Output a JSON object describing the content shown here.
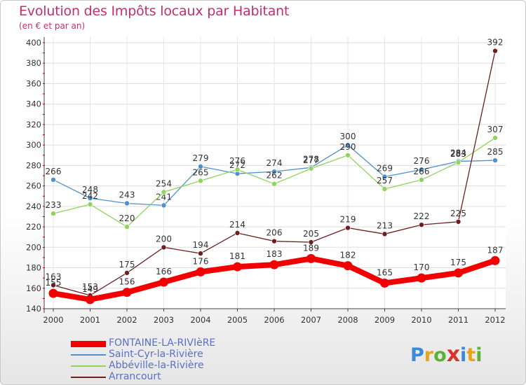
{
  "header": {
    "title": "Evolution des Impôts locaux par Habitant",
    "subtitle": "(en € et par an)"
  },
  "chart_data": {
    "type": "line",
    "title": "Evolution des Impôts locaux par Habitant",
    "subtitle": "(en € et par an)",
    "xlabel": "",
    "ylabel": "",
    "categories": [
      "2000",
      "2001",
      "2002",
      "2003",
      "2004",
      "2005",
      "2006",
      "2007",
      "2008",
      "2009",
      "2010",
      "2011",
      "2012"
    ],
    "ylim": [
      140,
      400
    ],
    "yticks": [
      140,
      160,
      180,
      200,
      220,
      240,
      260,
      280,
      300,
      320,
      340,
      360,
      380,
      400
    ],
    "grid": true,
    "legend_position": "bottom-left",
    "series": [
      {
        "name": "Saint-Cyr-la-Rivière",
        "color": "#4f92c9",
        "width": "thin",
        "values": [
          266,
          248,
          243,
          241,
          279,
          272,
          274,
          278,
          300,
          269,
          276,
          284,
          285
        ]
      },
      {
        "name": "Abbéville-la-Rivière",
        "color": "#8fd45c",
        "width": "thin",
        "values": [
          233,
          242,
          220,
          254,
          265,
          276,
          262,
          277,
          290,
          257,
          266,
          283,
          307
        ]
      },
      {
        "name": "Arrancourt",
        "color": "#6d1f1f",
        "width": "thin",
        "values": [
          163,
          153,
          175,
          200,
          194,
          214,
          206,
          205,
          219,
          213,
          222,
          225,
          392
        ]
      },
      {
        "name": "FONTAINE-LA-RIVIèRE",
        "color": "#f00000",
        "width": "thick",
        "values": [
          155,
          149,
          156,
          166,
          176,
          181,
          183,
          189,
          182,
          165,
          170,
          175,
          187
        ]
      }
    ]
  },
  "legend": [
    {
      "label": "FONTAINE-LA-RIVIèRE",
      "color": "#f00000"
    },
    {
      "label": "Saint-Cyr-la-Rivière",
      "color": "#4f92c9"
    },
    {
      "label": "Abbéville-la-Rivière",
      "color": "#8fd45c"
    },
    {
      "label": "Arrancourt",
      "color": "#6d1f1f"
    }
  ],
  "brand": {
    "letters": [
      "P",
      "r",
      "o",
      "x",
      "i",
      "t",
      "i"
    ],
    "colors": [
      "#3a8ad8",
      "#e8a51c",
      "#59b33b",
      "#d9342b",
      "#3a8ad8",
      "#e8a51c",
      "#59b33b"
    ]
  }
}
